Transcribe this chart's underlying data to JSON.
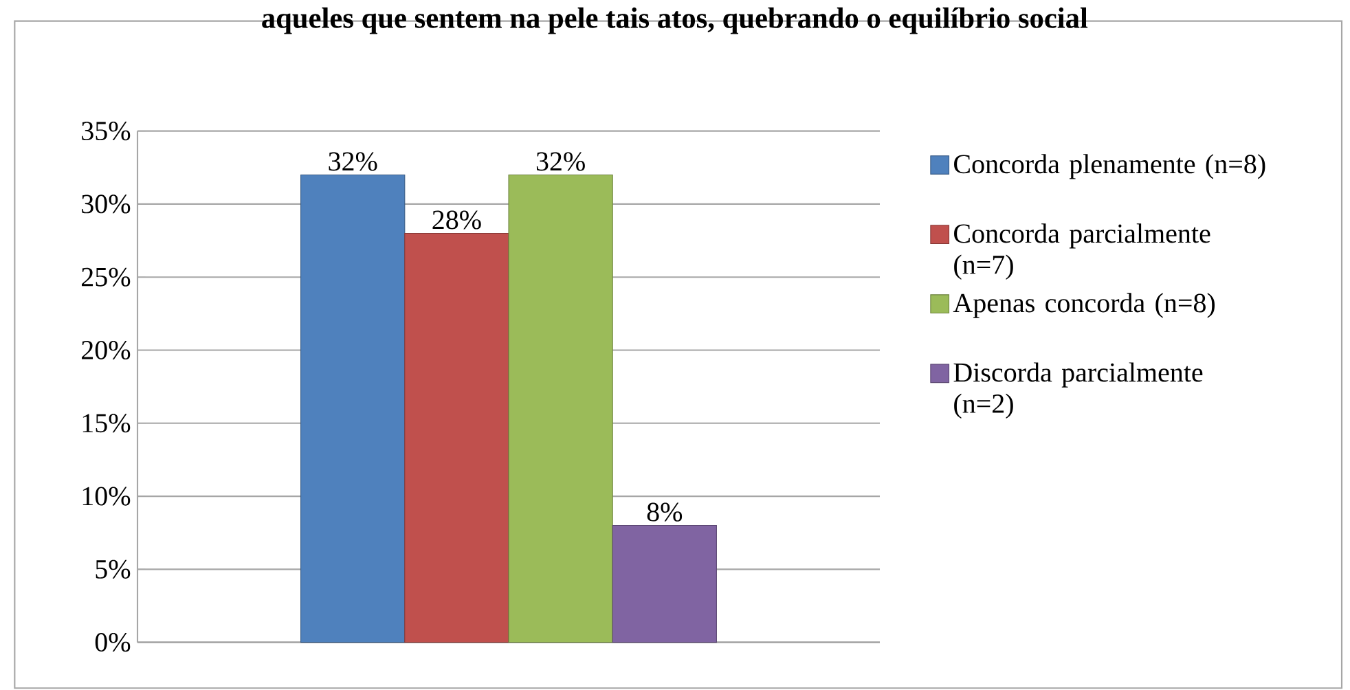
{
  "chart_data": {
    "type": "bar",
    "title": "aqueles que sentem na pele tais atos, quebrando o equilíbrio social",
    "categories": [
      null
    ],
    "series": [
      {
        "name": "Concorda plenamente (n=8)",
        "color": "#4f81bd",
        "values": [
          32
        ],
        "value_labels": [
          "32%"
        ]
      },
      {
        "name": "Concorda parcialmente (n=7)",
        "color": "#c0504d",
        "values": [
          28
        ],
        "value_labels": [
          "28%"
        ]
      },
      {
        "name": "Apenas concorda (n=8)",
        "color": "#9bbb59",
        "values": [
          32
        ],
        "value_labels": [
          "32%"
        ]
      },
      {
        "name": "Discorda parcialmente (n=2)",
        "color": "#8064a2",
        "values": [
          8
        ],
        "value_labels": [
          "8%"
        ]
      }
    ],
    "ylim": [
      0,
      35
    ],
    "yticks": [
      {
        "value": 0,
        "label": "0%"
      },
      {
        "value": 5,
        "label": "5%"
      },
      {
        "value": 10,
        "label": "10%"
      },
      {
        "value": 15,
        "label": "15%"
      },
      {
        "value": 20,
        "label": "20%"
      },
      {
        "value": 25,
        "label": "25%"
      },
      {
        "value": 30,
        "label": "30%"
      },
      {
        "value": 35,
        "label": "35%"
      }
    ],
    "grid": "y",
    "legend": "right"
  }
}
